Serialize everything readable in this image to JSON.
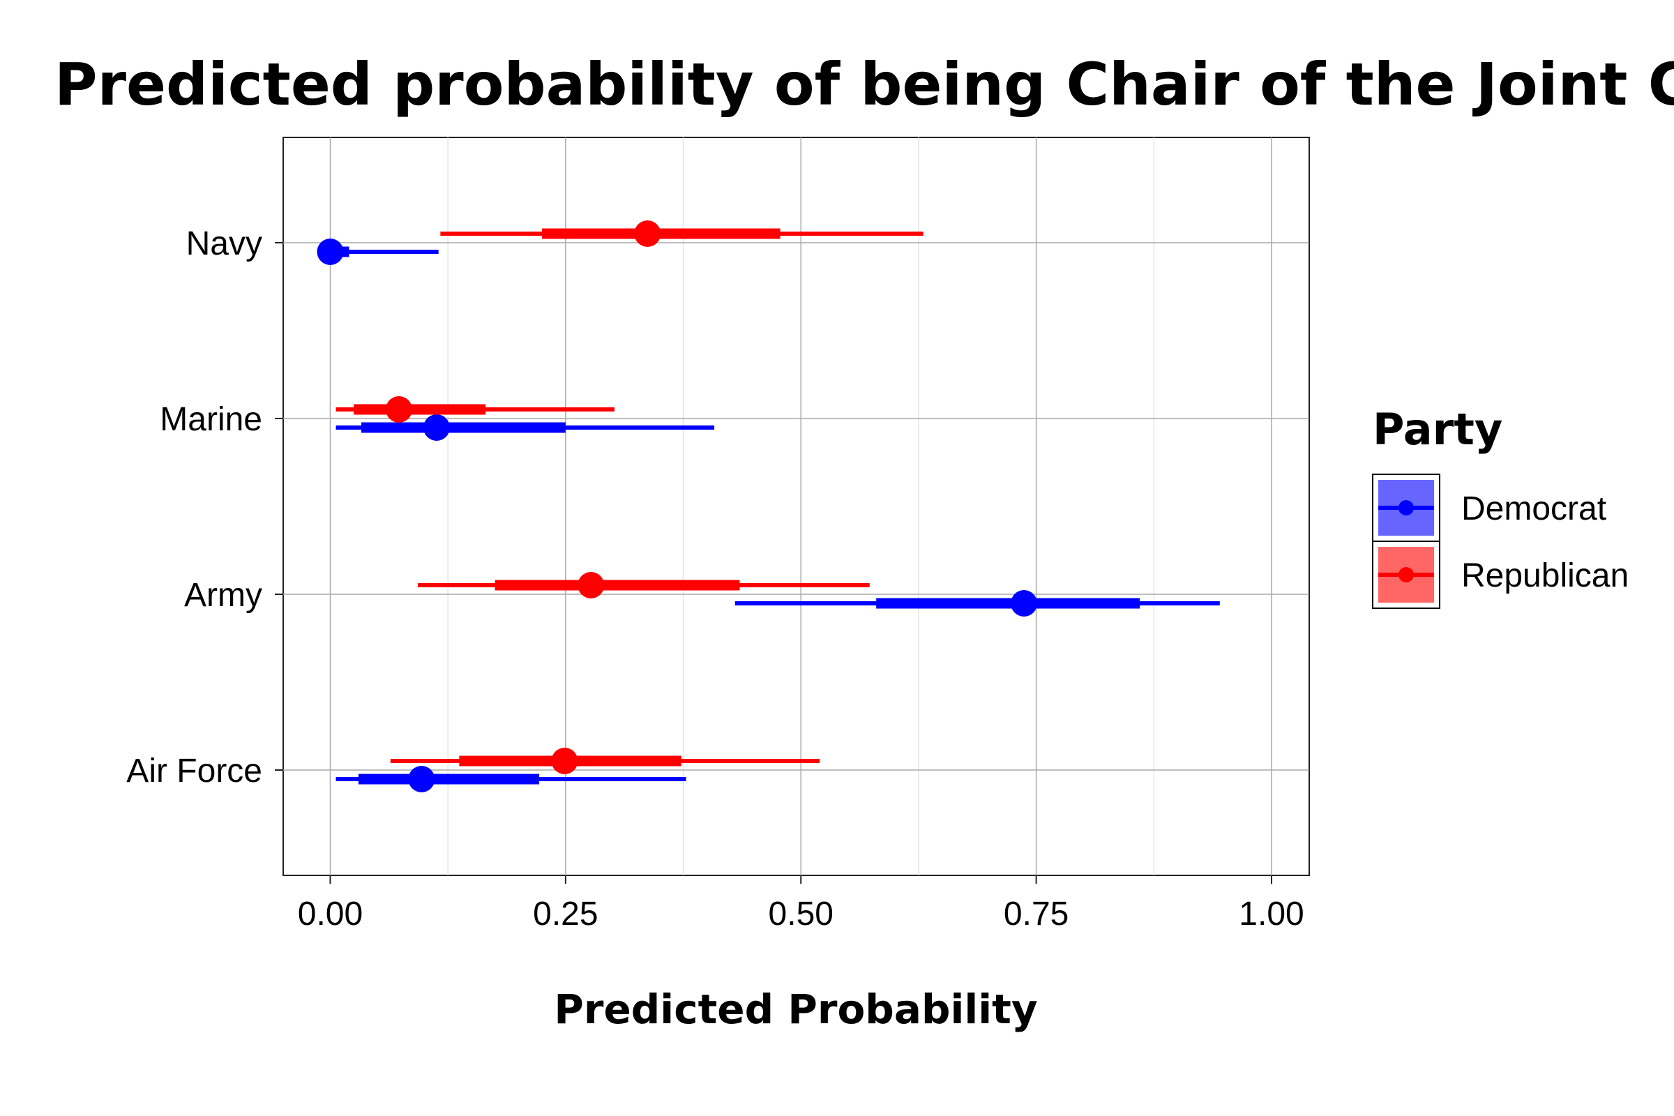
{
  "chart_data": {
    "type": "interval",
    "title": "Predicted probability of being Chair of the Joint Chiefs by branch and party",
    "xlabel": "Predicted Probability",
    "ylabel": "",
    "xlim": [
      -0.05,
      1.04
    ],
    "x_ticks": [
      "0.00",
      "0.25",
      "0.50",
      "0.75",
      "1.00"
    ],
    "categories": [
      "Navy",
      "Marine",
      "Army",
      "Air Force"
    ],
    "grid": true,
    "legend": {
      "title": "Party",
      "position": "right"
    },
    "series": [
      {
        "name": "Democrat",
        "color": "#0000ff",
        "points": [
          {
            "category": "Navy",
            "estimate": 0.0,
            "inner": [
              0.0,
              0.02
            ],
            "outer": [
              0.0,
              0.115
            ]
          },
          {
            "category": "Marine",
            "estimate": 0.113,
            "inner": [
              0.033,
              0.25
            ],
            "outer": [
              0.006,
              0.408
            ]
          },
          {
            "category": "Army",
            "estimate": 0.737,
            "inner": [
              0.58,
              0.86
            ],
            "outer": [
              0.43,
              0.945
            ]
          },
          {
            "category": "Air Force",
            "estimate": 0.097,
            "inner": [
              0.03,
              0.222
            ],
            "outer": [
              0.006,
              0.378
            ]
          }
        ]
      },
      {
        "name": "Republican",
        "color": "#ff0000",
        "points": [
          {
            "category": "Navy",
            "estimate": 0.337,
            "inner": [
              0.225,
              0.478
            ],
            "outer": [
              0.117,
              0.63
            ]
          },
          {
            "category": "Marine",
            "estimate": 0.073,
            "inner": [
              0.025,
              0.165
            ],
            "outer": [
              0.006,
              0.302
            ]
          },
          {
            "category": "Army",
            "estimate": 0.277,
            "inner": [
              0.175,
              0.435
            ],
            "outer": [
              0.093,
              0.573
            ]
          },
          {
            "category": "Air Force",
            "estimate": 0.249,
            "inner": [
              0.137,
              0.373
            ],
            "outer": [
              0.064,
              0.52
            ]
          }
        ]
      }
    ]
  }
}
